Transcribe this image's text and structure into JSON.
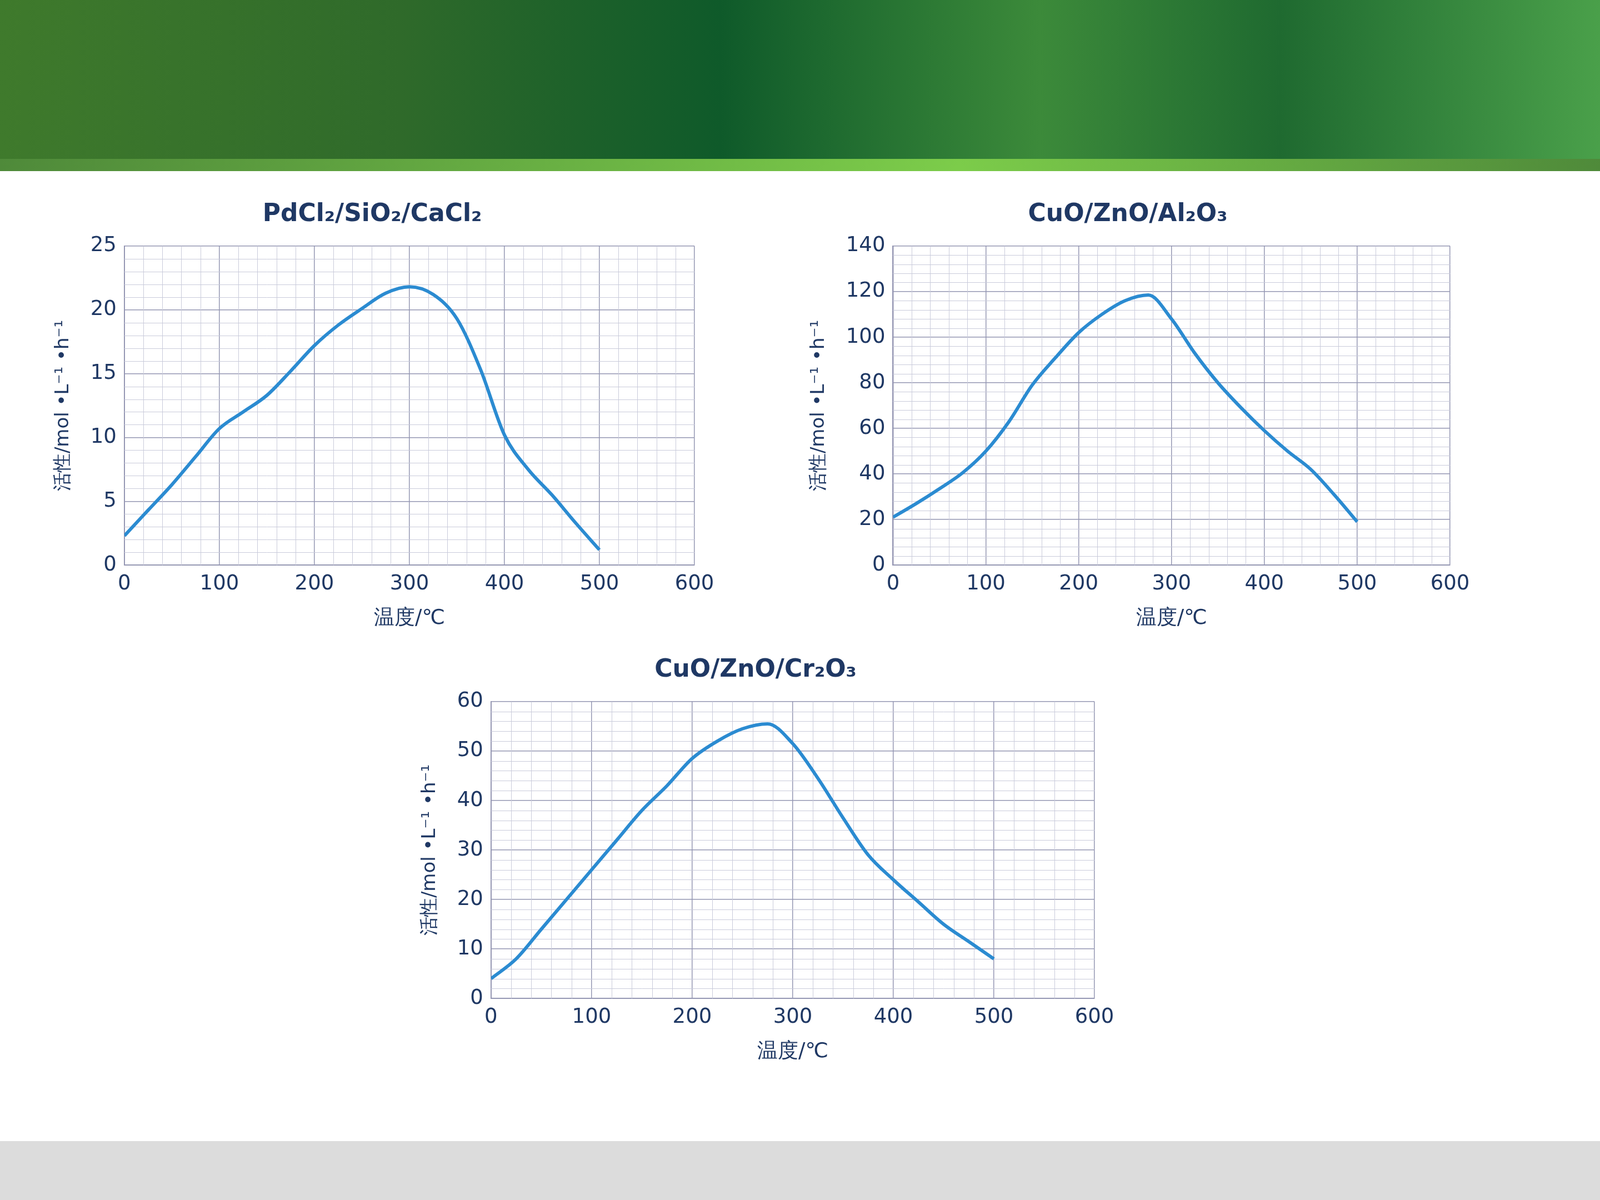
{
  "chart_data": [
    {
      "type": "line",
      "title": "PdCl₂/SiO₂/CaCl₂",
      "x_label": "温度/℃",
      "y_label": "活性/mol •L⁻¹ •h⁻¹",
      "x": [
        0,
        25,
        50,
        75,
        100,
        125,
        150,
        175,
        200,
        225,
        250,
        275,
        300,
        325,
        350,
        375,
        400,
        425,
        450,
        475,
        500
      ],
      "values": [
        2.3,
        4.3,
        6.3,
        8.5,
        10.7,
        12,
        13.3,
        15.2,
        17.2,
        18.8,
        20.1,
        21.3,
        21.8,
        21.2,
        19.3,
        15.3,
        10.2,
        7.5,
        5.5,
        3.3,
        1.2
      ],
      "color": "#2b8bd1",
      "xlim": [
        0,
        600
      ],
      "xticks": [
        0,
        100,
        200,
        300,
        400,
        500,
        600
      ],
      "ylim": [
        0,
        25
      ],
      "yticks": [
        0,
        5,
        10,
        15,
        20,
        25
      ],
      "grid": true
    },
    {
      "type": "line",
      "title": "CuO/ZnO/Al₂O₃",
      "x_label": "温度/℃",
      "y_label": "活性/mol •L⁻¹ •h⁻¹",
      "x": [
        0,
        25,
        50,
        75,
        100,
        125,
        150,
        175,
        200,
        225,
        250,
        275,
        300,
        325,
        350,
        375,
        400,
        425,
        450,
        475,
        500
      ],
      "values": [
        21,
        27,
        33.5,
        40.5,
        50,
        63,
        79,
        91,
        102,
        110,
        116,
        118.5,
        108,
        93,
        80,
        69,
        59,
        50,
        42,
        31,
        19
      ],
      "color": "#2b8bd1",
      "xlim": [
        0,
        600
      ],
      "xticks": [
        0,
        100,
        200,
        300,
        400,
        500,
        600
      ],
      "ylim": [
        0,
        140
      ],
      "yticks": [
        0,
        20,
        40,
        60,
        80,
        100,
        120,
        140
      ],
      "grid": true
    },
    {
      "type": "line",
      "title": "CuO/ZnO/Cr₂O₃",
      "x_label": "温度/℃",
      "y_label": "活性/mol •L⁻¹ •h⁻¹",
      "x": [
        0,
        25,
        50,
        75,
        100,
        125,
        150,
        175,
        200,
        225,
        250,
        275,
        300,
        325,
        350,
        375,
        400,
        425,
        450,
        475,
        500
      ],
      "values": [
        4,
        8,
        14,
        20,
        26,
        32,
        38,
        43,
        48.5,
        52,
        54.5,
        55.5,
        51.5,
        44.5,
        36.5,
        29,
        24,
        19.5,
        15,
        11.5,
        8
      ],
      "color": "#2b8bd1",
      "xlim": [
        0,
        600
      ],
      "xticks": [
        0,
        100,
        200,
        300,
        400,
        500,
        600
      ],
      "ylim": [
        0,
        60
      ],
      "yticks": [
        0,
        10,
        20,
        30,
        40,
        50,
        60
      ],
      "grid": true
    }
  ]
}
